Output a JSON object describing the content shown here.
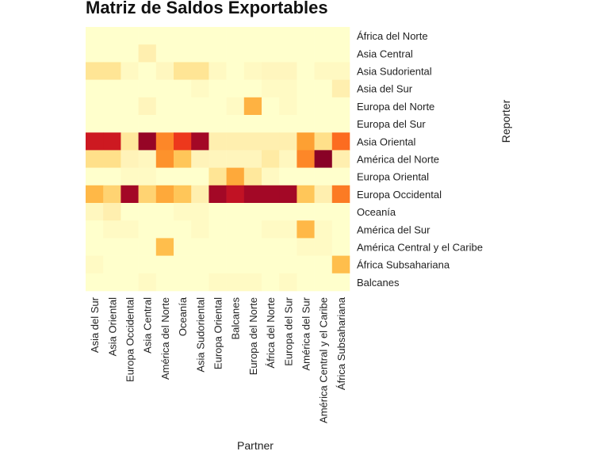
{
  "chart_data": {
    "type": "heatmap",
    "title": "Matriz de Saldos Exportables",
    "xlabel": "Partner",
    "ylabel": "Reporter",
    "x_categories": [
      "Asia del Sur",
      "Asia Oriental",
      "Europa Occidental",
      "Asia Central",
      "América del Norte",
      "Oceanía",
      "Asia Sudoriental",
      "Europa Oriental",
      "Balcanes",
      "Europa del Norte",
      "África del Norte",
      "Europa del Sur",
      "América del Sur",
      "América Central y el Caribe",
      "África Subsahariana"
    ],
    "y_categories": [
      "África del Norte",
      "Asia Central",
      "Asia Sudoriental",
      "Asia del Sur",
      "Europa del Norte",
      "Europa del Sur",
      "Asia Oriental",
      "América del Norte",
      "Europa Oriental",
      "Europa Occidental",
      "Oceanía",
      "América del Sur",
      "América Central y el Caribe",
      "África Subsahariana",
      "Balcanes"
    ],
    "colormap": [
      "#ffffcc",
      "#fff3b8",
      "#ffe08a",
      "#ffc04d",
      "#fd9a2e",
      "#fc6a1f",
      "#e8281b",
      "#b70d26",
      "#800026"
    ],
    "legend": "none",
    "grid": false,
    "values": [
      [
        0.0,
        0.0,
        0.0,
        0.0,
        0.0,
        0.0,
        0.0,
        0.0,
        0.0,
        0.0,
        0.0,
        0.0,
        0.0,
        0.0,
        0.0
      ],
      [
        0.0,
        0.0,
        0.0,
        0.15,
        0.0,
        0.0,
        0.0,
        0.0,
        0.0,
        0.0,
        0.0,
        0.0,
        0.0,
        0.0,
        0.0
      ],
      [
        0.22,
        0.22,
        0.06,
        0.0,
        0.08,
        0.22,
        0.22,
        0.06,
        0.0,
        0.06,
        0.09,
        0.09,
        0.0,
        0.06,
        0.06
      ],
      [
        0.0,
        0.0,
        0.0,
        0.0,
        0.0,
        0.0,
        0.05,
        0.0,
        0.0,
        0.0,
        0.05,
        0.05,
        0.0,
        0.0,
        0.15
      ],
      [
        0.0,
        0.0,
        0.0,
        0.1,
        0.0,
        0.0,
        0.0,
        0.0,
        0.05,
        0.42,
        0.0,
        0.05,
        0.0,
        0.0,
        0.0
      ],
      [
        0.0,
        0.0,
        0.0,
        0.0,
        0.0,
        0.0,
        0.0,
        0.0,
        0.0,
        0.0,
        0.0,
        0.0,
        0.0,
        0.0,
        0.0
      ],
      [
        0.82,
        0.82,
        0.2,
        0.95,
        0.55,
        0.72,
        0.92,
        0.15,
        0.15,
        0.15,
        0.15,
        0.15,
        0.48,
        0.25,
        0.62
      ],
      [
        0.25,
        0.25,
        0.12,
        0.08,
        0.52,
        0.35,
        0.12,
        0.1,
        0.1,
        0.1,
        0.18,
        0.08,
        0.55,
        0.98,
        0.15
      ],
      [
        0.0,
        0.0,
        0.05,
        0.05,
        0.0,
        0.0,
        0.0,
        0.22,
        0.45,
        0.2,
        0.06,
        0.0,
        0.0,
        0.0,
        0.0
      ],
      [
        0.4,
        0.3,
        0.92,
        0.3,
        0.45,
        0.35,
        0.15,
        0.92,
        0.85,
        0.92,
        0.92,
        0.92,
        0.35,
        0.15,
        0.58
      ],
      [
        0.08,
        0.15,
        0.0,
        0.0,
        0.0,
        0.05,
        0.05,
        0.0,
        0.0,
        0.0,
        0.0,
        0.0,
        0.0,
        0.0,
        0.0
      ],
      [
        0.0,
        0.05,
        0.05,
        0.0,
        0.0,
        0.0,
        0.05,
        0.0,
        0.0,
        0.0,
        0.05,
        0.05,
        0.4,
        0.05,
        0.0
      ],
      [
        0.0,
        0.0,
        0.0,
        0.0,
        0.38,
        0.0,
        0.0,
        0.0,
        0.0,
        0.0,
        0.0,
        0.0,
        0.05,
        0.05,
        0.0
      ],
      [
        0.05,
        0.0,
        0.0,
        0.0,
        0.0,
        0.0,
        0.0,
        0.0,
        0.0,
        0.0,
        0.0,
        0.0,
        0.0,
        0.0,
        0.38
      ],
      [
        0.0,
        0.0,
        0.0,
        0.05,
        0.0,
        0.0,
        0.0,
        0.05,
        0.05,
        0.05,
        0.0,
        0.05,
        0.0,
        0.0,
        0.0
      ]
    ]
  }
}
